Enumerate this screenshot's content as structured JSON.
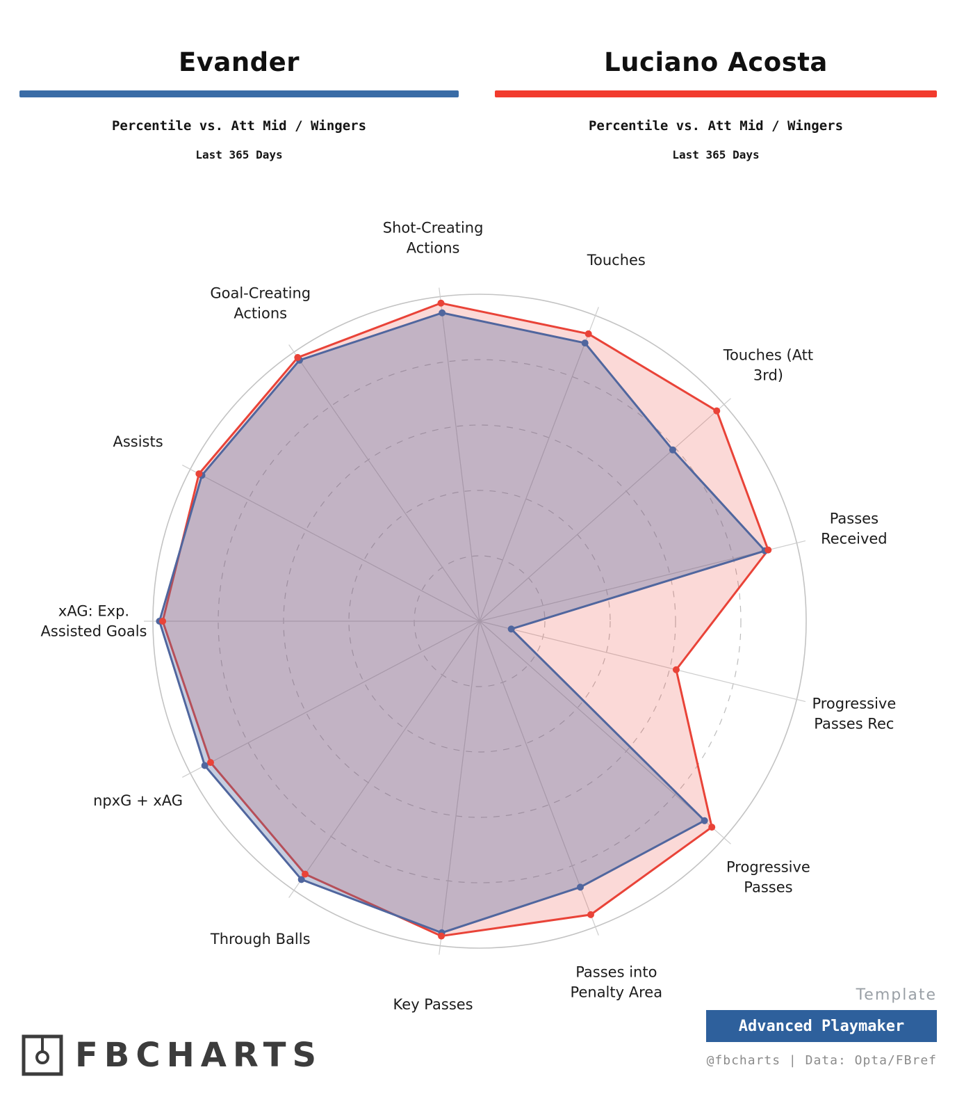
{
  "header": {
    "left": {
      "name": "Evander",
      "subtitle": "Percentile vs. Att Mid / Wingers",
      "period": "Last 365 Days",
      "accent": "#3a6ca6"
    },
    "right": {
      "name": "Luciano Acosta",
      "subtitle": "Percentile vs. Att Mid / Wingers",
      "period": "Last 365 Days",
      "accent": "#f23b2d"
    }
  },
  "chart_data": {
    "type": "radar",
    "angle_start_deg": -96.923,
    "r_min": 0,
    "r_max": 100,
    "ring_values": [
      20,
      40,
      60,
      80,
      100
    ],
    "grid": "dashed inner rings, solid outer ring, gray spokes",
    "legend_position": "none (color-coded player headers)",
    "categories": [
      {
        "label": "Shot-Creating Actions",
        "lines": [
          "Shot-Creating",
          "Actions"
        ]
      },
      {
        "label": "Touches",
        "lines": [
          "Touches"
        ]
      },
      {
        "label": "Touches (Att 3rd)",
        "lines": [
          "Touches (Att",
          "3rd)"
        ]
      },
      {
        "label": "Passes Received",
        "lines": [
          "Passes",
          "Received"
        ]
      },
      {
        "label": "Progressive Passes Rec",
        "lines": [
          "Progressive",
          "Passes Rec"
        ]
      },
      {
        "label": "Progressive Passes",
        "lines": [
          "Progressive",
          "Passes"
        ]
      },
      {
        "label": "Passes into Penalty Area",
        "lines": [
          "Passes into",
          "Penalty Area"
        ]
      },
      {
        "label": "Key Passes",
        "lines": [
          "Key Passes"
        ]
      },
      {
        "label": "Through Balls",
        "lines": [
          "Through Balls"
        ]
      },
      {
        "label": "npxG + xAG",
        "lines": [
          "npxG + xAG"
        ]
      },
      {
        "label": "xAG: Exp. Assisted Goals",
        "lines": [
          "xAG: Exp.",
          "Assisted Goals"
        ]
      },
      {
        "label": "Assists",
        "lines": [
          "Assists"
        ]
      },
      {
        "label": "Goal-Creating Actions",
        "lines": [
          "Goal-Creating",
          "Actions"
        ]
      }
    ],
    "series": [
      {
        "name": "Evander",
        "color": "#50669e",
        "fill": "rgba(80,102,158,0.33)",
        "values": [
          95,
          91,
          79,
          90,
          10,
          92,
          87,
          96,
          96,
          95,
          98,
          96,
          97
        ]
      },
      {
        "name": "Luciano Acosta",
        "color": "#e94338",
        "fill": "rgba(233,67,56,0.20)",
        "values": [
          98,
          94,
          97,
          91,
          62,
          95,
          96,
          97,
          94,
          93,
          97,
          97,
          98
        ]
      }
    ]
  },
  "footer": {
    "brand": "FBCHARTS",
    "template_label": "Template",
    "template_name": "Advanced Playmaker",
    "template_box_color": "#2e609c",
    "credit": "@fbcharts | Data: Opta/FBref"
  }
}
